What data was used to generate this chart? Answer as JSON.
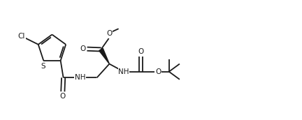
{
  "figsize": [
    4.32,
    1.72
  ],
  "dpi": 100,
  "bg": "#ffffff",
  "lc": "#1a1a1a",
  "lw": 1.3,
  "fs": 7.5,
  "xlim": [
    0.0,
    10.8
  ],
  "ylim": [
    0.0,
    4.3
  ]
}
